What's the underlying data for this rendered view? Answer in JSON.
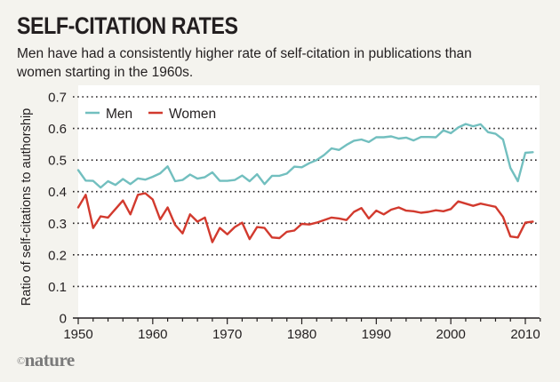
{
  "header": {
    "title": "SELF-CITATION RATES",
    "subtitle": "Men have had a consistently higher rate of self-citation in publications than women starting in the 1960s."
  },
  "footer": {
    "copyright_symbol": "©",
    "brand": "nature"
  },
  "colors": {
    "men": "#72bfbf",
    "women": "#d23a2e",
    "background": "#f4f3ee",
    "plot_background": "#ffffff",
    "text": "#231f20"
  },
  "chart_data": {
    "type": "line",
    "title": "SELF-CITATION RATES",
    "subtitle": "Men have had a consistently higher rate of self-citation in publications than women starting in the 1960s.",
    "xlabel": "",
    "ylabel": "Ratio of self-citations to authorship",
    "xlim": [
      1950,
      2011
    ],
    "ylim": [
      0,
      0.7
    ],
    "x_ticks": [
      1950,
      1960,
      1970,
      1980,
      1990,
      2000,
      2010
    ],
    "x_tick_labels": [
      "1950",
      "1960",
      "1970",
      "1980",
      "1990",
      "2000",
      "2010"
    ],
    "y_ticks": [
      0,
      0.1,
      0.2,
      0.3,
      0.4,
      0.5,
      0.6,
      0.7
    ],
    "y_tick_labels": [
      "0",
      "0.1",
      "0.2",
      "0.3",
      "0.4",
      "0.5",
      "0.6",
      "0.7"
    ],
    "grid": "horizontal-dotted",
    "legend": {
      "placement": "top-left",
      "entries": [
        "Men",
        "Women"
      ]
    },
    "x": [
      1950,
      1951,
      1952,
      1953,
      1954,
      1955,
      1956,
      1957,
      1958,
      1959,
      1960,
      1961,
      1962,
      1963,
      1964,
      1965,
      1966,
      1967,
      1968,
      1969,
      1970,
      1971,
      1972,
      1973,
      1974,
      1975,
      1976,
      1977,
      1978,
      1979,
      1980,
      1981,
      1982,
      1983,
      1984,
      1985,
      1986,
      1987,
      1988,
      1989,
      1990,
      1991,
      1992,
      1993,
      1994,
      1995,
      1996,
      1997,
      1998,
      1999,
      2000,
      2001,
      2002,
      2003,
      2004,
      2005,
      2006,
      2007,
      2008,
      2009,
      2010,
      2011
    ],
    "series": [
      {
        "name": "Men",
        "color": "#72bfbf",
        "values": [
          0.468,
          0.435,
          0.434,
          0.413,
          0.433,
          0.421,
          0.44,
          0.424,
          0.442,
          0.438,
          0.447,
          0.458,
          0.48,
          0.433,
          0.437,
          0.454,
          0.441,
          0.446,
          0.461,
          0.434,
          0.434,
          0.437,
          0.451,
          0.433,
          0.455,
          0.424,
          0.45,
          0.45,
          0.457,
          0.479,
          0.477,
          0.49,
          0.5,
          0.516,
          0.537,
          0.532,
          0.548,
          0.561,
          0.565,
          0.557,
          0.572,
          0.572,
          0.575,
          0.568,
          0.571,
          0.562,
          0.573,
          0.573,
          0.572,
          0.594,
          0.585,
          0.603,
          0.614,
          0.607,
          0.613,
          0.588,
          0.583,
          0.565,
          0.475,
          0.433,
          0.523,
          0.525
        ]
      },
      {
        "name": "Women",
        "color": "#d23a2e",
        "values": [
          0.35,
          0.39,
          0.285,
          0.322,
          0.318,
          0.345,
          0.372,
          0.328,
          0.39,
          0.395,
          0.375,
          0.312,
          0.35,
          0.295,
          0.268,
          0.328,
          0.305,
          0.318,
          0.24,
          0.285,
          0.265,
          0.288,
          0.302,
          0.25,
          0.288,
          0.285,
          0.255,
          0.253,
          0.273,
          0.277,
          0.298,
          0.296,
          0.302,
          0.31,
          0.318,
          0.315,
          0.31,
          0.336,
          0.348,
          0.315,
          0.34,
          0.328,
          0.343,
          0.35,
          0.34,
          0.338,
          0.333,
          0.336,
          0.341,
          0.338,
          0.345,
          0.369,
          0.362,
          0.355,
          0.362,
          0.357,
          0.352,
          0.32,
          0.258,
          0.255,
          0.302,
          0.305
        ]
      }
    ]
  }
}
